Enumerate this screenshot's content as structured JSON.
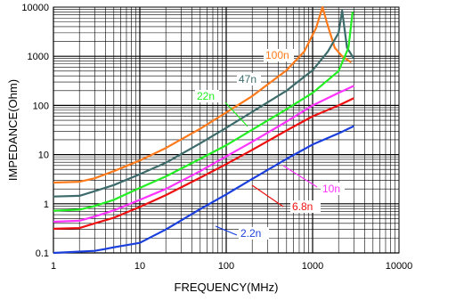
{
  "chart_data": {
    "type": "line",
    "title": "",
    "xlabel": "FREQUENCY(MHz)",
    "ylabel": "IMPEDANCE(Ohm)",
    "xscale": "log",
    "yscale": "log",
    "xlim": [
      1,
      10000
    ],
    "ylim": [
      0.1,
      10000
    ],
    "grid": true,
    "legend": "none",
    "xticks": [
      "1",
      "10",
      "100",
      "1000",
      "10000"
    ],
    "yticks": [
      "0.1",
      "1",
      "10",
      "100",
      "1000",
      "10000"
    ],
    "series": [
      {
        "name": "100n",
        "color": "#ff7a1a",
        "points": [
          [
            1,
            2.7
          ],
          [
            2,
            2.8
          ],
          [
            3,
            3.3
          ],
          [
            5,
            4.6
          ],
          [
            10,
            7.6
          ],
          [
            20,
            13.6
          ],
          [
            50,
            33.5
          ],
          [
            100,
            72
          ],
          [
            200,
            155
          ],
          [
            500,
            520
          ],
          [
            800,
            1250
          ],
          [
            1100,
            3800
          ],
          [
            1300,
            10000
          ],
          [
            1500,
            4200
          ],
          [
            1800,
            1500
          ],
          [
            2200,
            1000
          ],
          [
            2800,
            750
          ]
        ]
      },
      {
        "name": "47n",
        "color": "#3d6b6b",
        "points": [
          [
            1,
            1.4
          ],
          [
            2,
            1.45
          ],
          [
            3,
            1.8
          ],
          [
            5,
            2.4
          ],
          [
            10,
            4.0
          ],
          [
            20,
            6.8
          ],
          [
            50,
            17
          ],
          [
            100,
            35
          ],
          [
            200,
            74
          ],
          [
            500,
            200
          ],
          [
            1000,
            520
          ],
          [
            1500,
            1250
          ],
          [
            2000,
            3000
          ],
          [
            2200,
            8500
          ],
          [
            2500,
            1500
          ],
          [
            3000,
            900
          ]
        ]
      },
      {
        "name": "22n",
        "color": "#22ee22",
        "points": [
          [
            1,
            0.72
          ],
          [
            2,
            0.76
          ],
          [
            3,
            0.9
          ],
          [
            5,
            1.2
          ],
          [
            10,
            2.1
          ],
          [
            20,
            3.6
          ],
          [
            50,
            8.2
          ],
          [
            100,
            15.5
          ],
          [
            200,
            32
          ],
          [
            500,
            84
          ],
          [
            1000,
            180
          ],
          [
            2000,
            500
          ],
          [
            2600,
            1500
          ],
          [
            2900,
            8000
          ]
        ]
      },
      {
        "name": "10n",
        "color": "#ff33ff",
        "points": [
          [
            1,
            0.43
          ],
          [
            2,
            0.45
          ],
          [
            3,
            0.55
          ],
          [
            5,
            0.73
          ],
          [
            10,
            1.2
          ],
          [
            20,
            2.0
          ],
          [
            50,
            4.6
          ],
          [
            100,
            9.2
          ],
          [
            200,
            18.2
          ],
          [
            500,
            47
          ],
          [
            1000,
            100
          ],
          [
            2000,
            180
          ],
          [
            3000,
            250
          ]
        ]
      },
      {
        "name": "6.8n",
        "color": "#ee1111",
        "points": [
          [
            1,
            0.31
          ],
          [
            2,
            0.32
          ],
          [
            3,
            0.4
          ],
          [
            5,
            0.52
          ],
          [
            10,
            0.86
          ],
          [
            20,
            1.5
          ],
          [
            50,
            3.4
          ],
          [
            100,
            6.4
          ],
          [
            200,
            12.5
          ],
          [
            500,
            31
          ],
          [
            1000,
            60
          ],
          [
            2000,
            100
          ],
          [
            3000,
            140
          ]
        ]
      },
      {
        "name": "2.2n",
        "color": "#1a3fdd",
        "points": [
          [
            1,
            0.1
          ],
          [
            3,
            0.11
          ],
          [
            4,
            0.12
          ],
          [
            5,
            0.13
          ],
          [
            10,
            0.16
          ],
          [
            20,
            0.3
          ],
          [
            50,
            0.78
          ],
          [
            100,
            1.55
          ],
          [
            200,
            3.2
          ],
          [
            500,
            8.2
          ],
          [
            1000,
            16
          ],
          [
            2000,
            27
          ],
          [
            3000,
            38
          ]
        ]
      }
    ],
    "annotations": [
      {
        "text": "100n",
        "series": "100n"
      },
      {
        "text": "47n",
        "series": "47n"
      },
      {
        "text": "22n",
        "series": "22n"
      },
      {
        "text": "10n",
        "series": "10n"
      },
      {
        "text": "6.8n",
        "series": "6.8n"
      },
      {
        "text": "2.2n",
        "series": "2.2n"
      }
    ]
  }
}
